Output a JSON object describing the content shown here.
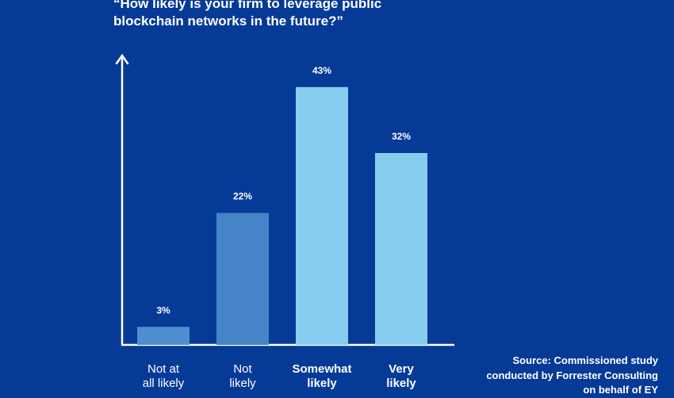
{
  "chart_data": {
    "type": "bar",
    "title_lines": [
      "“How likely is your firm to leverage public",
      "blockchain networks in the future?”"
    ],
    "categories": [
      "Not at all likely",
      "Not likely",
      "Somewhat likely",
      "Very likely"
    ],
    "category_lines": [
      [
        "Not at",
        "all likely"
      ],
      [
        "Not",
        "likely"
      ],
      [
        "Somewhat",
        "likely"
      ],
      [
        "Very",
        "likely"
      ]
    ],
    "category_bold": [
      false,
      false,
      true,
      true
    ],
    "values": [
      3,
      22,
      43,
      32
    ],
    "value_labels": [
      "3%",
      "22%",
      "43%",
      "32%"
    ],
    "bar_colors": [
      "#4f8fd0",
      "#4584c6",
      "#87cdf0",
      "#87cdf0"
    ],
    "ylim": [
      0,
      48
    ],
    "y_axis_arrow": true,
    "grid": false,
    "legend": "none",
    "xlabel": "",
    "ylabel": ""
  },
  "source_lines": [
    "Source: Commissioned study",
    "conducted by Forrester Consulting",
    "on behalf of EY"
  ],
  "colors": {
    "background": "#063a97",
    "axis": "#ffffff",
    "text": "#ffffff"
  }
}
